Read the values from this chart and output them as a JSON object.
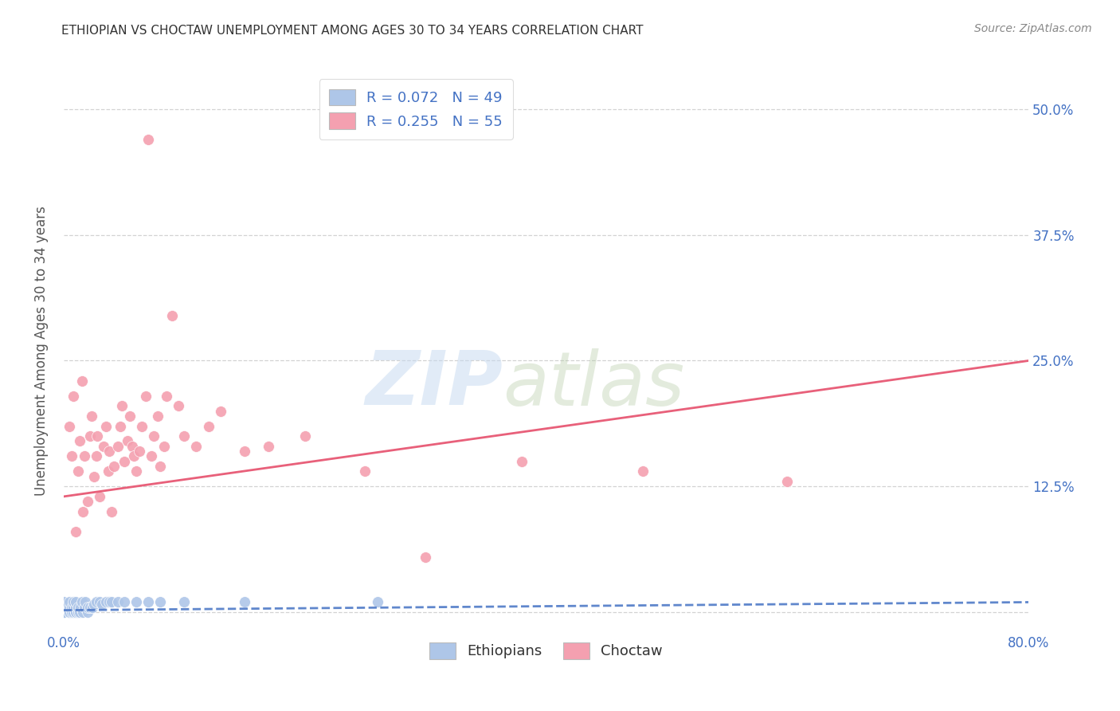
{
  "title": "ETHIOPIAN VS CHOCTAW UNEMPLOYMENT AMONG AGES 30 TO 34 YEARS CORRELATION CHART",
  "source": "Source: ZipAtlas.com",
  "ylabel": "Unemployment Among Ages 30 to 34 years",
  "xlim": [
    0.0,
    0.8
  ],
  "ylim": [
    -0.02,
    0.54
  ],
  "xticks": [
    0.0,
    0.1,
    0.2,
    0.3,
    0.4,
    0.5,
    0.6,
    0.7,
    0.8
  ],
  "xticklabels": [
    "0.0%",
    "",
    "",
    "",
    "",
    "",
    "",
    "",
    "80.0%"
  ],
  "ytick_positions": [
    0.0,
    0.125,
    0.25,
    0.375,
    0.5
  ],
  "ytick_labels": [
    "",
    "12.5%",
    "25.0%",
    "37.5%",
    "50.0%"
  ],
  "background_color": "#ffffff",
  "grid_color": "#c8c8c8",
  "title_color": "#333333",
  "axis_label_color": "#555555",
  "tick_label_color": "#4472c4",
  "ethiopians_color": "#aec6e8",
  "choctaw_color": "#f4a0b0",
  "ethiopians_line_color": "#4472c4",
  "choctaw_line_color": "#e8607a",
  "legend_R1": "R = 0.072",
  "legend_N1": "N = 49",
  "legend_R2": "R = 0.255",
  "legend_N2": "N = 55",
  "watermark_zip": "ZIP",
  "watermark_atlas": "atlas",
  "ethiopians_scatter_x": [
    0.0,
    0.0,
    0.0,
    0.0,
    0.0,
    0.0,
    0.0,
    0.0,
    0.0,
    0.005,
    0.005,
    0.005,
    0.005,
    0.007,
    0.007,
    0.008,
    0.008,
    0.008,
    0.01,
    0.01,
    0.01,
    0.01,
    0.012,
    0.012,
    0.013,
    0.014,
    0.015,
    0.016,
    0.017,
    0.018,
    0.02,
    0.02,
    0.022,
    0.024,
    0.025,
    0.027,
    0.03,
    0.032,
    0.035,
    0.038,
    0.04,
    0.045,
    0.05,
    0.06,
    0.07,
    0.08,
    0.1,
    0.15,
    0.26
  ],
  "ethiopians_scatter_y": [
    0.0,
    0.0,
    0.0,
    0.0,
    0.0,
    0.0,
    0.005,
    0.008,
    0.01,
    0.0,
    0.0,
    0.005,
    0.01,
    0.0,
    0.005,
    0.0,
    0.005,
    0.01,
    0.0,
    0.0,
    0.005,
    0.01,
    0.0,
    0.005,
    0.0,
    0.005,
    0.01,
    0.0,
    0.005,
    0.01,
    0.0,
    0.005,
    0.005,
    0.005,
    0.008,
    0.01,
    0.01,
    0.008,
    0.01,
    0.01,
    0.01,
    0.01,
    0.01,
    0.01,
    0.01,
    0.01,
    0.01,
    0.01,
    0.01
  ],
  "choctaw_scatter_x": [
    0.005,
    0.007,
    0.008,
    0.01,
    0.012,
    0.013,
    0.015,
    0.016,
    0.017,
    0.02,
    0.022,
    0.023,
    0.025,
    0.027,
    0.028,
    0.03,
    0.033,
    0.035,
    0.037,
    0.038,
    0.04,
    0.042,
    0.045,
    0.047,
    0.048,
    0.05,
    0.053,
    0.055,
    0.057,
    0.058,
    0.06,
    0.063,
    0.065,
    0.068,
    0.07,
    0.073,
    0.075,
    0.078,
    0.08,
    0.083,
    0.085,
    0.09,
    0.095,
    0.1,
    0.11,
    0.12,
    0.13,
    0.15,
    0.17,
    0.2,
    0.25,
    0.3,
    0.38,
    0.48,
    0.6
  ],
  "choctaw_scatter_y": [
    0.185,
    0.155,
    0.215,
    0.08,
    0.14,
    0.17,
    0.23,
    0.1,
    0.155,
    0.11,
    0.175,
    0.195,
    0.135,
    0.155,
    0.175,
    0.115,
    0.165,
    0.185,
    0.14,
    0.16,
    0.1,
    0.145,
    0.165,
    0.185,
    0.205,
    0.15,
    0.17,
    0.195,
    0.165,
    0.155,
    0.14,
    0.16,
    0.185,
    0.215,
    0.47,
    0.155,
    0.175,
    0.195,
    0.145,
    0.165,
    0.215,
    0.295,
    0.205,
    0.175,
    0.165,
    0.185,
    0.2,
    0.16,
    0.165,
    0.175,
    0.14,
    0.055,
    0.15,
    0.14,
    0.13
  ],
  "ethiopians_line_x": [
    0.0,
    0.8
  ],
  "ethiopians_line_y": [
    0.002,
    0.01
  ],
  "choctaw_line_x": [
    0.0,
    0.8
  ],
  "choctaw_line_y": [
    0.115,
    0.25
  ]
}
